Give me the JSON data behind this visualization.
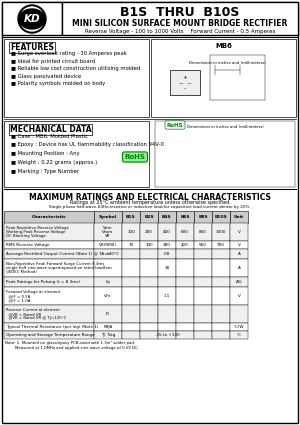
{
  "title": "B1S  THRU  B10S",
  "subtitle": "MINI SILICON SURFACE MOUNT BRIDGE RECTIFIER",
  "subtitle2": "Reverse Voltage - 100 to 1000 Volts    Forward Current - 0.5 Amperes",
  "features_title": "FEATURES",
  "features": [
    "Surge overload rating - 30 Amperes peak",
    "Ideal for printed circuit board",
    "Reliable low cost construction utilizing molded",
    "Glass passivated device",
    "Polarity symbols molded on body"
  ],
  "mech_title": "MECHANICAL DATA",
  "mech_items": [
    "Case : MB6, Molded Plastic",
    "Epoxy : Device has UL flammability classification 94V-0",
    "Mounting Position : Any",
    "Weight : 0.22 grams (approx.)",
    "Marking : Type Number"
  ],
  "table_title": "MAXIMUM RATINGS AND ELECTRICAL CHARACTERISTICS",
  "table_note1": "Ratings at 25°C ambient temperature unless otherwise specified.",
  "table_note2": "Single phase half-wave-60Hz,resistive or inductive load,for capacitive load current derate by 20%.",
  "col_headers": [
    "Characteristic",
    "Symbol",
    "B1S",
    "B2S",
    "B4S",
    "B6S",
    "B8S",
    "B10S",
    "Unit"
  ],
  "rows": [
    [
      "Peak Repetitive Reverse Voltage\nWorking Peak Reverse Voltage\nDC Blocking Voltage",
      "Vrrm\nVrwm\nVR",
      "100",
      "200",
      "400",
      "600",
      "800",
      "1000",
      "V"
    ],
    [
      "RMS Reverse Voltage",
      "VR(RMS)",
      "70",
      "140",
      "280",
      "420",
      "560",
      "700",
      "V"
    ],
    [
      "Average Rectified Output Current (Note 1) @ TA= 40°C",
      "Io",
      "",
      "",
      "0.8",
      "",
      "",
      "",
      "A"
    ],
    [
      "Non-Repetitive Peak Forward Surge Current 8.3ms\nsingle half sine-wave superimposed on rated load\n(JEDEC Method)",
      "Ifsm",
      "",
      "",
      "30",
      "",
      "",
      "",
      "A"
    ],
    [
      "Peak Ratings for Pulsing (t = 8.3ms)",
      "Fp",
      "",
      "",
      "",
      "",
      "",
      "",
      "A%"
    ],
    [
      "Forward Voltage at element\n  @IF = 0.5A\n  @IF = 1.0A",
      "VFe",
      "",
      "",
      "1.1",
      "",
      "",
      "",
      "V"
    ],
    [
      "Reverse Current at element\n  @VR = Rated VR\n  @VR = Rated VR @ TJ=125°C",
      "IR",
      "",
      "",
      "",
      "",
      "",
      "",
      ""
    ],
    [
      "Typical Thermal Resistance (per leg) (Note 1)",
      "RθJA",
      "",
      "",
      "",
      "",
      "",
      "",
      "°C/W"
    ],
    [
      "Operating and Storage Temperature Range",
      "TJ, Tstg",
      "",
      "",
      "-55 to +130",
      "",
      "",
      "",
      "°C"
    ]
  ],
  "bg_color": "#ffffff",
  "border_color": "#000000",
  "header_bg": "#d0d0d0"
}
